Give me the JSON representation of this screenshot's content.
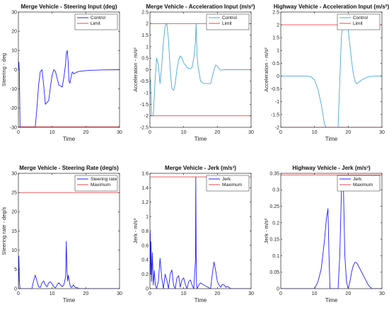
{
  "colors": {
    "control": "#1f1fff",
    "accel": "#4aa8d8",
    "limit": "#e8474f",
    "axis": "#262626",
    "grid": "#f0f0f0"
  },
  "chart_data": [
    {
      "type": "line",
      "title": "Merge Vehicle - Steering Input (deg)",
      "xlabel": "Time",
      "ylabel": "Steering - deg",
      "xlim": [
        0,
        30
      ],
      "ylim": [
        -30,
        30
      ],
      "xticks": [
        "0",
        "10",
        "20",
        "30"
      ],
      "yticks": [
        "-30",
        "-20",
        "-10",
        "0",
        "10",
        "20",
        "30"
      ],
      "series": [
        {
          "name": "Control",
          "color": "#1f1fff",
          "x": [
            0,
            0.15,
            0.3,
            0.5,
            1,
            2,
            3,
            4,
            4.5,
            5,
            5.5,
            6,
            6.5,
            7,
            7.5,
            8,
            9,
            9.5,
            10,
            10.5,
            11,
            12,
            13,
            13.5,
            14,
            14.2,
            14.5,
            14.8,
            15,
            15.3,
            15.6,
            16,
            16.5,
            17,
            18,
            19,
            20,
            22,
            25,
            30
          ],
          "y": [
            0,
            4,
            -2,
            -30,
            -30,
            -30,
            -30,
            -30,
            -30,
            -30,
            -20,
            -8,
            -1,
            0,
            -8,
            -18,
            -16,
            -9,
            -3,
            0,
            -1,
            -8,
            -9,
            -4,
            3,
            8,
            10,
            3,
            -6,
            -7,
            -4,
            -1.2,
            -2.2,
            -1.5,
            -0.9,
            -0.7,
            -0.5,
            -0.3,
            -0.1,
            0
          ]
        },
        {
          "name": "Limit",
          "color": "#e8474f",
          "x": [
            0,
            30
          ],
          "y": [
            -29.7,
            -29.7
          ]
        }
      ],
      "legend": "top-right"
    },
    {
      "type": "line",
      "title": "Merge Vehicle - Acceleration Input (m/s²)",
      "xlabel": "Time",
      "ylabel": "Acceleration - m/s²",
      "xlim": [
        0,
        30
      ],
      "ylim": [
        -2.5,
        2.5
      ],
      "xticks": [
        "0",
        "10",
        "20",
        "30"
      ],
      "yticks": [
        "-2.5",
        "-2",
        "-1.5",
        "-1",
        "-0.5",
        "0",
        "0.5",
        "1",
        "1.5",
        "2",
        "2.5"
      ],
      "series": [
        {
          "name": "Control",
          "color": "#4aa8d8",
          "x": [
            0,
            0.2,
            0.5,
            1,
            1.5,
            2,
            2.5,
            3,
            3.5,
            4,
            4.5,
            5,
            5.5,
            6,
            6.5,
            7,
            7.5,
            8,
            8.5,
            9,
            9.5,
            10,
            10.5,
            11,
            11.5,
            12,
            12.5,
            13,
            13.5,
            13.7,
            13.8,
            14,
            14.3,
            14.7,
            15,
            16,
            18,
            19,
            19.5,
            20,
            20.5,
            21,
            22,
            24,
            30
          ],
          "y": [
            -0.3,
            -0.6,
            -2,
            -2,
            -0.5,
            0.5,
            0.2,
            -0.6,
            0.2,
            1.2,
            1.9,
            2,
            1.3,
            0,
            -0.8,
            -0.9,
            -0.6,
            0,
            0.4,
            0.6,
            0.5,
            0.3,
            0.2,
            0.1,
            0.05,
            0.05,
            0.1,
            0.5,
            1.2,
            2,
            1.5,
            0.6,
            0.1,
            -0.2,
            -0.5,
            -0.6,
            -0.6,
            0,
            0.2,
            0.15,
            0.05,
            -0.02,
            0,
            0,
            0
          ]
        },
        {
          "name": "Limit",
          "color": "#e8474f",
          "x": [
            0,
            30
          ],
          "y": [
            2,
            2
          ]
        },
        {
          "name": "",
          "color": "#e8474f",
          "x": [
            0,
            30
          ],
          "y": [
            -2,
            -2
          ]
        }
      ],
      "legend": "top-right"
    },
    {
      "type": "line",
      "title": "Highway Vehicle - Acceleration Input (m/s²)",
      "xlabel": "Time",
      "ylabel": "Acceleration - m/s²",
      "xlim": [
        0,
        30
      ],
      "ylim": [
        -2,
        2.5
      ],
      "xticks": [
        "0",
        "10",
        "20",
        "30"
      ],
      "yticks": [
        "-2",
        "-1.5",
        "-1",
        "-0.5",
        "0",
        "0.5",
        "1",
        "1.5",
        "2",
        "2.5"
      ],
      "series": [
        {
          "name": "Control",
          "color": "#4aa8d8",
          "x": [
            0,
            8,
            9,
            10,
            11,
            12,
            12.5,
            13,
            13.5,
            14,
            17,
            17.5,
            18,
            18.5,
            19,
            19.5,
            20,
            20.5,
            21,
            21.5,
            22,
            22.5,
            23,
            24,
            25,
            26,
            27,
            28,
            30
          ],
          "y": [
            0,
            0,
            -0.03,
            -0.15,
            -0.5,
            -1.1,
            -1.5,
            -1.9,
            -2,
            -2,
            -2,
            -0.2,
            1.6,
            2,
            2,
            2,
            1.8,
            1.2,
            0.6,
            0.1,
            -0.2,
            -0.3,
            -0.25,
            -0.15,
            -0.08,
            -0.03,
            -0.01,
            0,
            0
          ]
        },
        {
          "name": "Limit",
          "color": "#e8474f",
          "x": [
            0,
            30
          ],
          "y": [
            2,
            2
          ]
        },
        {
          "name": "",
          "color": "#e8474f",
          "x": [
            0,
            30
          ],
          "y": [
            -2,
            -2
          ]
        }
      ],
      "legend": "top-right"
    },
    {
      "type": "line",
      "title": "Merge Vehicle - Steering Rate (deg/s)",
      "xlabel": "Time",
      "ylabel": "Steering rate - deg/s",
      "xlim": [
        0,
        30
      ],
      "ylim": [
        0,
        30
      ],
      "xticks": [
        "0",
        "10",
        "20",
        "30"
      ],
      "yticks": [
        "0",
        "5",
        "10",
        "15",
        "20",
        "25",
        "30"
      ],
      "series": [
        {
          "name": "Steering rate",
          "color": "#1f1fff",
          "x": [
            0,
            0.15,
            0.3,
            0.5,
            0.7,
            1,
            1.3,
            1.7,
            2,
            4,
            4.5,
            5,
            5.5,
            6,
            6.5,
            7,
            7.5,
            8,
            8.5,
            9,
            9.5,
            10,
            10.5,
            11,
            11.5,
            12,
            12.5,
            13,
            13.5,
            14,
            14.2,
            14.4,
            14.6,
            14.8,
            15,
            15.3,
            15.6,
            16,
            16.3,
            16.6,
            17,
            17.3,
            17.6,
            18,
            20,
            30
          ],
          "y": [
            0,
            8.5,
            2,
            0,
            0,
            0,
            0,
            0,
            0,
            0,
            2,
            3.5,
            2,
            0.5,
            0.3,
            1.5,
            2,
            1,
            0.5,
            1.5,
            1.8,
            1.2,
            0.5,
            0.2,
            1,
            1.5,
            1,
            0.5,
            1,
            3,
            12.3,
            5,
            2,
            3.5,
            2.5,
            1,
            0.3,
            0.5,
            1,
            0.6,
            0.2,
            0.3,
            0.2,
            0,
            0,
            0
          ]
        },
        {
          "name": "Maximum",
          "color": "#e8474f",
          "x": [
            0,
            30
          ],
          "y": [
            25,
            25
          ]
        }
      ],
      "legend": "top-right"
    },
    {
      "type": "line",
      "title": "Merge Vehicle - Jerk (m/s³)",
      "xlabel": "Time",
      "ylabel": "Jerk - m/s³",
      "xlim": [
        0,
        30
      ],
      "ylim": [
        0,
        1.6
      ],
      "xticks": [
        "0",
        "10",
        "20",
        "30"
      ],
      "yticks": [
        "0",
        "0.2",
        "0.4",
        "0.6",
        "0.8",
        "1",
        "1.2",
        "1.4",
        "1.6"
      ],
      "series": [
        {
          "name": "Jerk",
          "color": "#1f1fff",
          "x": [
            0,
            0.1,
            0.2,
            0.3,
            0.5,
            0.7,
            1,
            1.3,
            1.6,
            2,
            2.5,
            3,
            3.5,
            4,
            4.5,
            5,
            5.5,
            6,
            6.5,
            7,
            7.5,
            8,
            8.5,
            9,
            9.5,
            10,
            10.5,
            11,
            11.5,
            12,
            12.5,
            13,
            13.5,
            13.6,
            13.7,
            13.8,
            13.9,
            14,
            14.5,
            15,
            16,
            18,
            18.5,
            19,
            19.5,
            20,
            20.5,
            21,
            21.5,
            22,
            22.5,
            23,
            24,
            30
          ],
          "y": [
            0.1,
            0.78,
            0.2,
            0.65,
            0.1,
            0.5,
            0.05,
            0.25,
            0.05,
            0,
            0.1,
            0.42,
            0.15,
            0,
            0.2,
            0.12,
            0,
            0.2,
            0.26,
            0.05,
            0,
            0.15,
            0.18,
            0.02,
            0.12,
            0.15,
            0.06,
            0,
            0.1,
            0.12,
            0.05,
            0,
            0.4,
            1.55,
            0.5,
            0.1,
            0.02,
            0,
            0.05,
            0.08,
            0.05,
            0,
            0.2,
            0.37,
            0.25,
            0.1,
            0.05,
            0.02,
            0.06,
            0.05,
            0.02,
            0.03,
            0,
            0
          ]
        },
        {
          "name": "Maximum",
          "color": "#e8474f",
          "x": [
            0,
            30
          ],
          "y": [
            1.55,
            1.55
          ]
        }
      ],
      "legend": "top-right"
    },
    {
      "type": "line",
      "title": "Highway Vehicle - Jerk (m/s³)",
      "xlabel": "Time",
      "ylabel": "Jerk - m/s³",
      "xlim": [
        0,
        30
      ],
      "ylim": [
        0,
        0.35
      ],
      "xticks": [
        "0",
        "10",
        "20",
        "30"
      ],
      "yticks": [
        "0",
        "0.05",
        "0.1",
        "0.15",
        "0.2",
        "0.25",
        "0.3",
        "0.35"
      ],
      "series": [
        {
          "name": "Jerk",
          "color": "#1f1fff",
          "x": [
            0,
            10,
            11,
            12,
            13,
            13.5,
            14,
            14.3,
            14.6,
            15,
            17,
            17.5,
            18,
            18.3,
            18.6,
            19,
            19.5,
            20,
            20.5,
            21,
            21.5,
            22,
            22.5,
            23,
            24,
            25,
            26,
            27,
            30
          ],
          "y": [
            0,
            0,
            0.02,
            0.06,
            0.15,
            0.21,
            0.243,
            0.1,
            0,
            0,
            0,
            0.1,
            0.3,
            0.34,
            0.3,
            0.1,
            0.02,
            0,
            0.02,
            0.05,
            0.07,
            0.08,
            0.078,
            0.07,
            0.05,
            0.03,
            0.01,
            0,
            0
          ]
        },
        {
          "name": "Maximum",
          "color": "#e8474f",
          "x": [
            0,
            30
          ],
          "y": [
            0.345,
            0.345
          ]
        }
      ],
      "legend": "top-right"
    }
  ]
}
